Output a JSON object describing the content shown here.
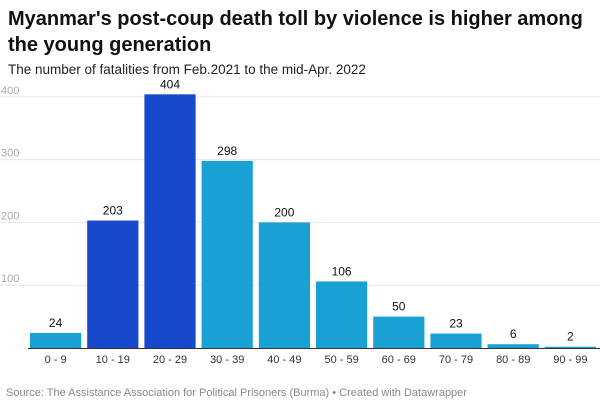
{
  "chart_data": {
    "type": "bar",
    "title": "Myanmar's post-coup death toll by violence is higher among the young generation",
    "subtitle": "The number of fatalities from Feb.2021 to the mid-Apr. 2022",
    "categories": [
      "0 - 9",
      "10 - 19",
      "20 - 29",
      "30 - 39",
      "40 - 49",
      "50 - 59",
      "60 - 69",
      "70 - 79",
      "80 - 89",
      "90 - 99"
    ],
    "values": [
      24,
      203,
      404,
      298,
      200,
      106,
      50,
      23,
      6,
      2
    ],
    "highlighted": [
      "10 - 19",
      "20 - 29"
    ],
    "yticks": [
      100,
      200,
      300,
      400
    ],
    "ylim": [
      0,
      430
    ],
    "xlabel": "",
    "ylabel": "",
    "grid": true,
    "colors": {
      "default": "#1aa1d3",
      "highlight": "#1848cc",
      "grid": "#e6e6e6",
      "axis": "#333333",
      "tick_label": "#aaaaaa"
    }
  },
  "footer": {
    "source": "Source: The Assistance Association for Political Prisoners (Burma) • Created with Datawrapper"
  }
}
